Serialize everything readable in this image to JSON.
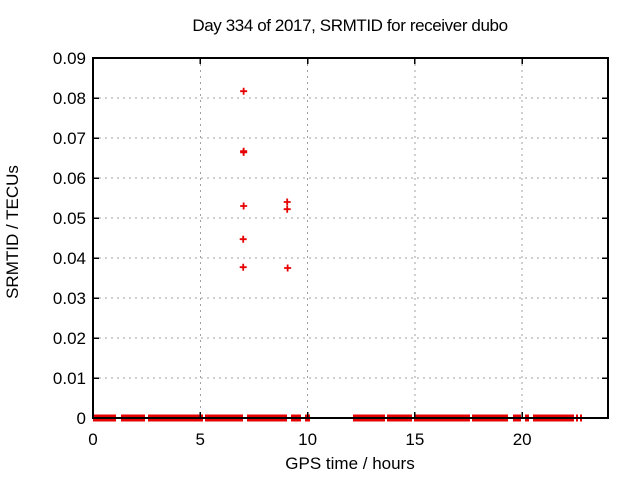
{
  "chart_data": {
    "type": "scatter",
    "title": "Day 334 of 2017, SRMTID for receiver dubo",
    "xlabel": "GPS time / hours",
    "ylabel": "SRMTID / TECUs",
    "xlim": [
      0,
      24
    ],
    "ylim": [
      0,
      0.09
    ],
    "grid": true,
    "legend": "none",
    "marker": "plus",
    "xticks": {
      "values": [
        0,
        5,
        10,
        15,
        20
      ],
      "labels": [
        "0",
        "5",
        "10",
        "15",
        "20"
      ]
    },
    "yticks": {
      "values": [
        0,
        0.01,
        0.02,
        0.03,
        0.04,
        0.05,
        0.06,
        0.07,
        0.08,
        0.09
      ],
      "labels": [
        "0",
        "0.01",
        "0.02",
        "0.03",
        "0.04",
        "0.05",
        "0.06",
        "0.07",
        "0.08",
        "0.09"
      ]
    },
    "colors": {
      "marker": "#e60000",
      "grid": "#a0a0a0",
      "axis": "#000000",
      "text": "#000000",
      "background": "#ffffff"
    },
    "series": [
      {
        "name": "SRMTID",
        "color": "#e60000",
        "points": [
          [
            7.02,
            0.0817
          ],
          [
            7.02,
            0.0667
          ],
          [
            7.02,
            0.0664
          ],
          [
            7.02,
            0.053
          ],
          [
            9.05,
            0.054
          ],
          [
            9.05,
            0.0522
          ],
          [
            7.0,
            0.0447
          ],
          [
            7.0,
            0.0377
          ],
          [
            9.07,
            0.0375
          ]
        ],
        "zero_band_segments": [
          [
            0.0,
            1.07
          ],
          [
            1.3,
            2.42
          ],
          [
            2.56,
            5.13
          ],
          [
            5.22,
            6.99
          ],
          [
            7.18,
            9.04
          ],
          [
            9.23,
            9.69
          ],
          [
            9.88,
            10.11
          ],
          [
            12.12,
            13.61
          ],
          [
            13.7,
            14.87
          ],
          [
            14.96,
            17.57
          ],
          [
            17.66,
            19.34
          ],
          [
            19.57,
            19.95
          ],
          [
            20.13,
            20.32
          ],
          [
            20.5,
            22.41
          ],
          [
            22.51,
            22.6
          ],
          [
            22.69,
            22.79
          ]
        ]
      }
    ]
  }
}
